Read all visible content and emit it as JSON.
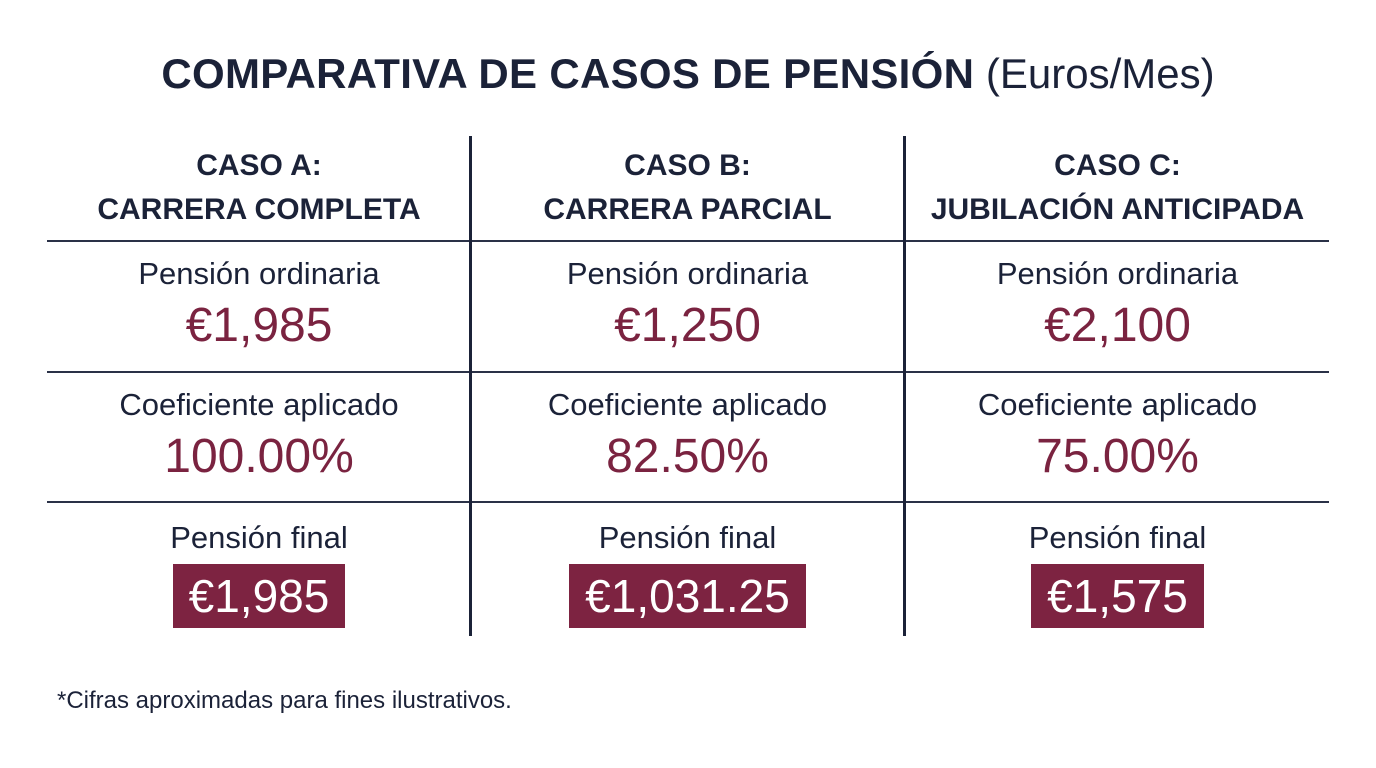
{
  "title": {
    "main": "COMPARATIVA DE CASOS DE PENSIÓN",
    "unit": "(Euros/Mes)"
  },
  "cases": [
    {
      "header_line1": "CASO A:",
      "header_line2": "CARRERA COMPLETA",
      "ordinary_label": "Pensión ordinaria",
      "ordinary_value": "€1,985",
      "coef_label": "Coeficiente aplicado",
      "coef_value": "100.00%",
      "final_label": "Pensión final",
      "final_value": "€1,985"
    },
    {
      "header_line1": "CASO B:",
      "header_line2": "CARRERA PARCIAL",
      "ordinary_label": "Pensión ordinaria",
      "ordinary_value": "€1,250",
      "coef_label": "Coeficiente aplicado",
      "coef_value": "82.50%",
      "final_label": "Pensión final",
      "final_value": "€1,031.25"
    },
    {
      "header_line1": "CASO C:",
      "header_line2": "JUBILACIÓN ANTICIPADA",
      "ordinary_label": "Pensión ordinaria",
      "ordinary_value": "€2,100",
      "coef_label": "Coeficiente aplicado",
      "coef_value": "75.00%",
      "final_label": "Pensión final",
      "final_value": "€1,575"
    }
  ],
  "footnote": "*Cifras aproximadas para fines ilustrativos.",
  "colors": {
    "text": "#1b2238",
    "accent": "#7a2340",
    "final_box": "#7d2341"
  }
}
